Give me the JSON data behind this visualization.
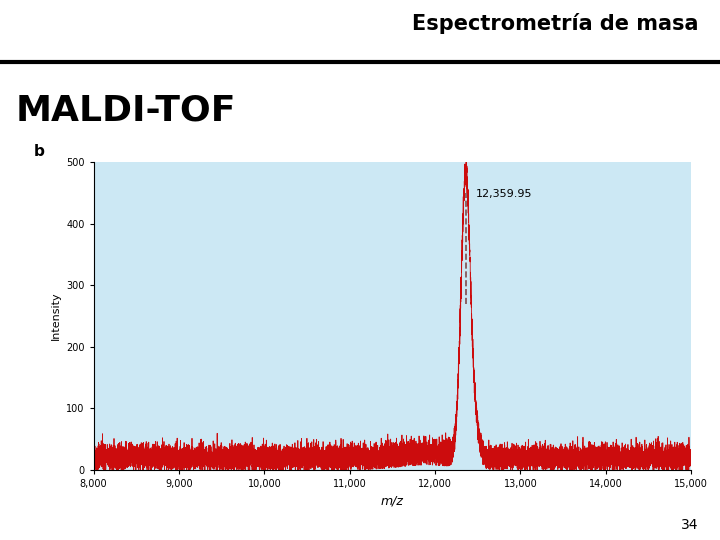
{
  "title_top": "Espectrometría de masa",
  "subtitle": "MALDI-TOF",
  "panel_label": "b",
  "xlabel": "m/z",
  "ylabel": "Intensity",
  "xlim": [
    8000,
    15000
  ],
  "ylim": [
    0,
    500
  ],
  "xticks": [
    8000,
    9000,
    10000,
    11000,
    12000,
    13000,
    14000,
    15000
  ],
  "xtick_labels": [
    "8,000",
    "9,000",
    "10,000",
    "11,000",
    "12,000",
    "13,000",
    "14,000",
    "15,000"
  ],
  "yticks": [
    0,
    100,
    200,
    300,
    400,
    500
  ],
  "peak_mz": 12359.95,
  "peak_intensity": 460,
  "peak_label": "12,359.95",
  "noise_level": 20,
  "noise_amplitude": 10,
  "line_color": "#cc0000",
  "dashed_line_color": "#7a3a3a",
  "bg_color": "#cce8f4",
  "page_number": "34",
  "title_fontsize": 15,
  "subtitle_fontsize": 26
}
